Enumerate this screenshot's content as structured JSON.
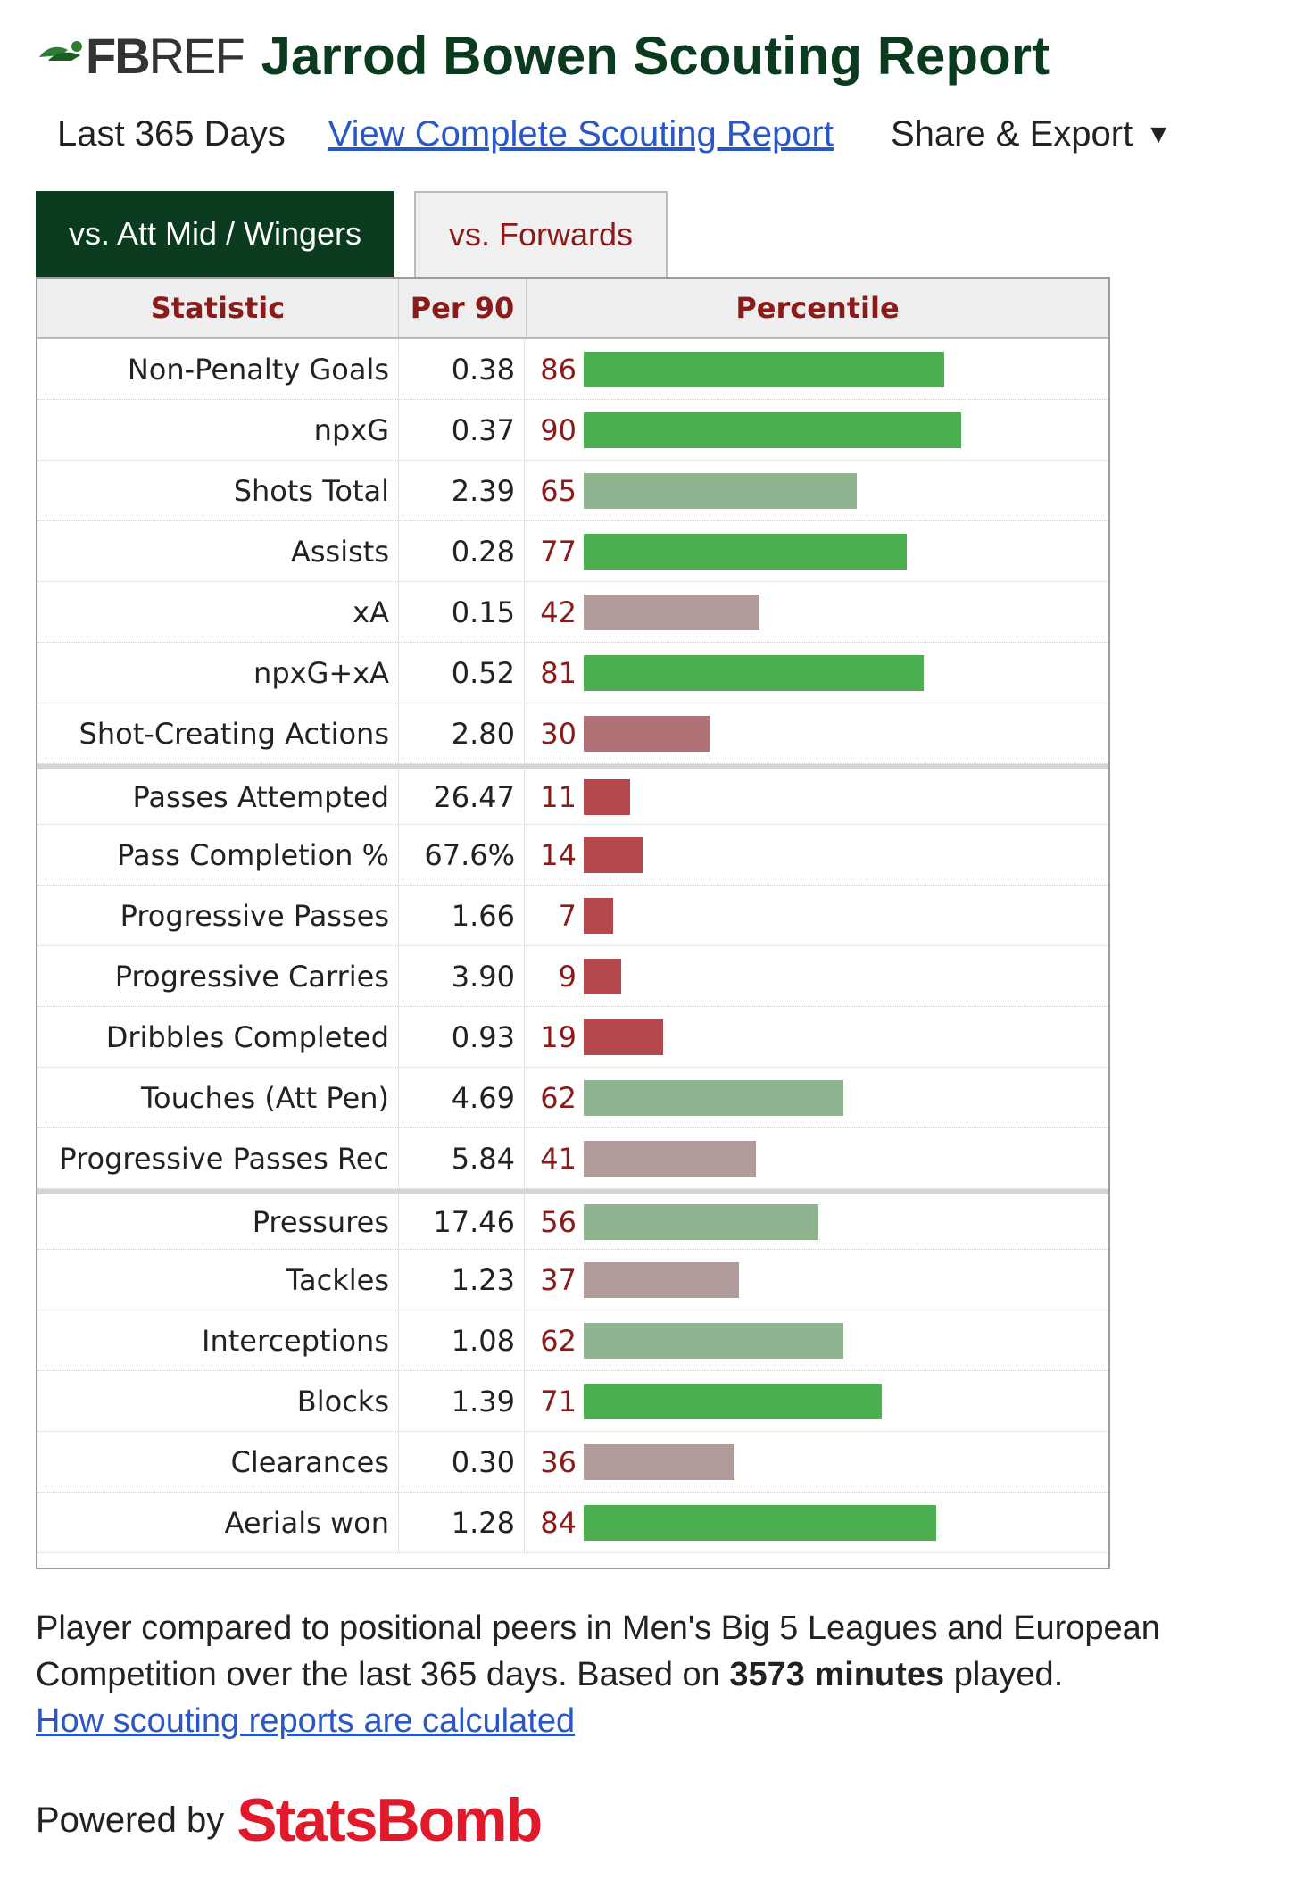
{
  "header": {
    "logo_fb": "FB",
    "logo_ref": "REF",
    "title": "Jarrod Bowen Scouting Report"
  },
  "subbar": {
    "period": "Last 365 Days",
    "view_link": "View Complete Scouting Report",
    "share": "Share & Export",
    "caret": "▼"
  },
  "tabs": [
    {
      "label": "vs. Att Mid / Wingers",
      "active": true
    },
    {
      "label": "vs. Forwards",
      "active": false
    }
  ],
  "table": {
    "headers": {
      "stat": "Statistic",
      "per90": "Per 90",
      "pct": "Percentile"
    },
    "groups": [
      [
        {
          "stat": "Non-Penalty Goals",
          "per90": "0.38",
          "pct": 86
        },
        {
          "stat": "npxG",
          "per90": "0.37",
          "pct": 90
        },
        {
          "stat": "Shots Total",
          "per90": "2.39",
          "pct": 65
        },
        {
          "stat": "Assists",
          "per90": "0.28",
          "pct": 77
        },
        {
          "stat": "xA",
          "per90": "0.15",
          "pct": 42
        },
        {
          "stat": "npxG+xA",
          "per90": "0.52",
          "pct": 81
        },
        {
          "stat": "Shot-Creating Actions",
          "per90": "2.80",
          "pct": 30
        }
      ],
      [
        {
          "stat": "Passes Attempted",
          "per90": "26.47",
          "pct": 11
        },
        {
          "stat": "Pass Completion %",
          "per90": "67.6%",
          "pct": 14
        },
        {
          "stat": "Progressive Passes",
          "per90": "1.66",
          "pct": 7
        },
        {
          "stat": "Progressive Carries",
          "per90": "3.90",
          "pct": 9
        },
        {
          "stat": "Dribbles Completed",
          "per90": "0.93",
          "pct": 19
        },
        {
          "stat": "Touches (Att Pen)",
          "per90": "4.69",
          "pct": 62
        },
        {
          "stat": "Progressive Passes Rec",
          "per90": "5.84",
          "pct": 41
        }
      ],
      [
        {
          "stat": "Pressures",
          "per90": "17.46",
          "pct": 56
        },
        {
          "stat": "Tackles",
          "per90": "1.23",
          "pct": 37
        },
        {
          "stat": "Interceptions",
          "per90": "1.08",
          "pct": 62
        },
        {
          "stat": "Blocks",
          "per90": "1.39",
          "pct": 71
        },
        {
          "stat": "Clearances",
          "per90": "0.30",
          "pct": 36
        },
        {
          "stat": "Aerials won",
          "per90": "1.28",
          "pct": 84
        }
      ]
    ]
  },
  "colors": {
    "high": "#4caf50",
    "mid_high": "#8fb38f",
    "mid_low": "#b09a9a",
    "low": "#b07276",
    "very_low": "#b5484d"
  },
  "footer": {
    "text_a": "Player compared to positional peers in Men's Big 5 Leagues and European Competition over the last 365 days. Based on ",
    "minutes": "3573 minutes",
    "text_b": " played.",
    "calc_link": "How scouting reports are calculated"
  },
  "powered": {
    "label": "Powered by",
    "brand": "StatsBomb"
  }
}
